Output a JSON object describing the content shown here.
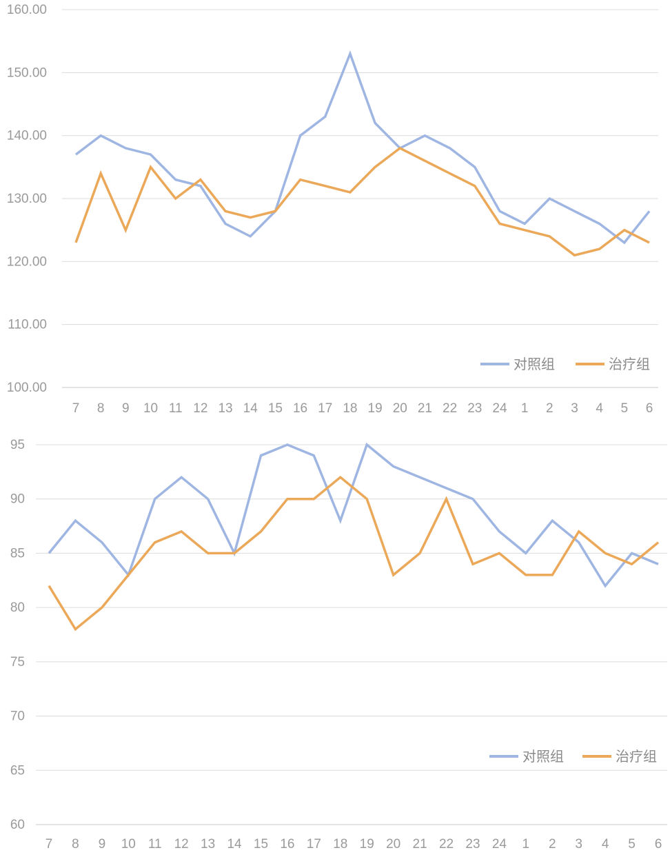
{
  "chart_data": [
    {
      "type": "line",
      "categories": [
        "7",
        "8",
        "9",
        "10",
        "11",
        "12",
        "13",
        "14",
        "15",
        "16",
        "17",
        "18",
        "19",
        "20",
        "21",
        "22",
        "23",
        "24",
        "1",
        "2",
        "3",
        "4",
        "5",
        "6"
      ],
      "series": [
        {
          "name": "对照组",
          "color": "#9fb6e3",
          "values": [
            137,
            140,
            138,
            137,
            133,
            132,
            126,
            124,
            128,
            140,
            143,
            153,
            142,
            138,
            140,
            138,
            135,
            128,
            126,
            130,
            128,
            126,
            123,
            128
          ]
        },
        {
          "name": "治疗组",
          "color": "#eba858",
          "values": [
            123,
            134,
            125,
            135,
            130,
            133,
            128,
            127,
            128,
            133,
            132,
            131,
            135,
            138,
            136,
            134,
            132,
            126,
            125,
            124,
            121,
            122,
            125,
            123
          ]
        }
      ],
      "ylim": [
        100,
        160
      ],
      "yticks": [
        "100.00",
        "110.00",
        "120.00",
        "130.00",
        "140.00",
        "150.00",
        "160.00"
      ],
      "grid": true,
      "legend": "bottom-right"
    },
    {
      "type": "line",
      "categories": [
        "7",
        "8",
        "9",
        "10",
        "11",
        "12",
        "13",
        "14",
        "15",
        "16",
        "17",
        "18",
        "19",
        "20",
        "21",
        "22",
        "23",
        "24",
        "1",
        "2",
        "3",
        "4",
        "5",
        "6"
      ],
      "series": [
        {
          "name": "对照组",
          "color": "#9fb6e3",
          "values": [
            85,
            88,
            86,
            83,
            90,
            92,
            90,
            85,
            94,
            95,
            94,
            88,
            95,
            93,
            92,
            91,
            90,
            87,
            85,
            88,
            86,
            82,
            85,
            84
          ]
        },
        {
          "name": "治疗组",
          "color": "#eba858",
          "values": [
            82,
            78,
            80,
            83,
            86,
            87,
            85,
            85,
            87,
            90,
            90,
            92,
            90,
            83,
            85,
            90,
            84,
            85,
            83,
            83,
            87,
            85,
            84,
            86
          ]
        }
      ],
      "ylim": [
        60,
        95
      ],
      "yticks": [
        "60",
        "65",
        "70",
        "75",
        "80",
        "85",
        "90",
        "95"
      ],
      "grid": true,
      "legend": "bottom-right"
    }
  ]
}
